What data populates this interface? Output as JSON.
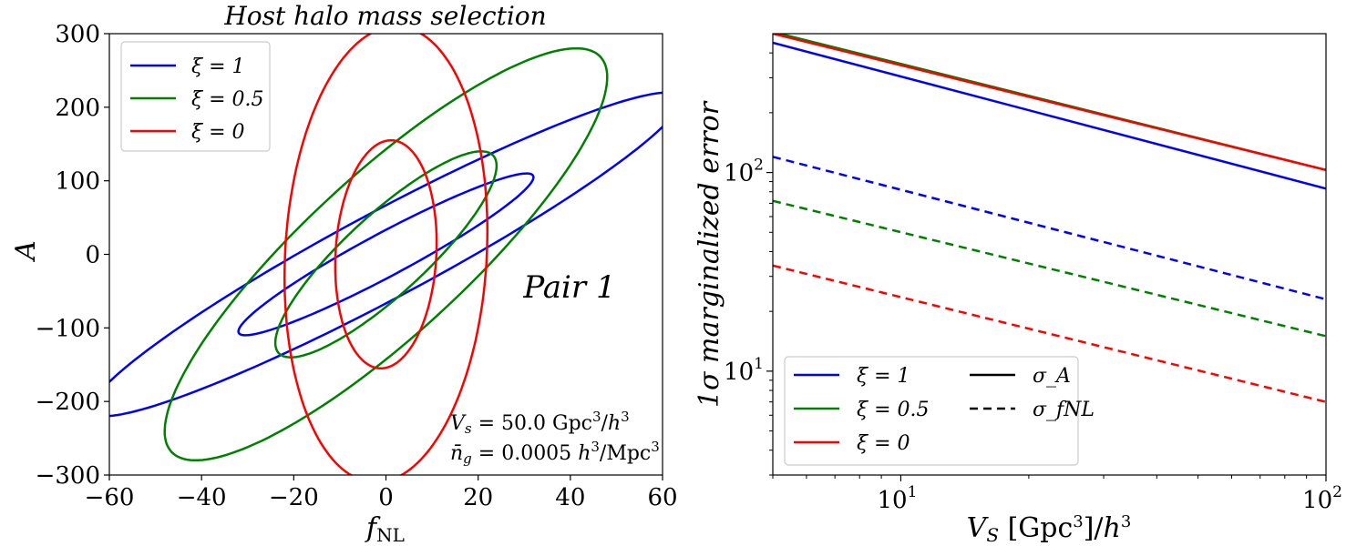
{
  "chart_data": [
    {
      "type": "contour",
      "title": "Host halo mass selection",
      "xlabel": "f_NL",
      "ylabel": "A",
      "xlim": [
        -60,
        60
      ],
      "ylim": [
        -300,
        300
      ],
      "xticks": [
        "−60",
        "−40",
        "−20",
        "0",
        "20",
        "40",
        "60"
      ],
      "yticks": [
        "300",
        "200",
        "100",
        "0",
        "−100",
        "−200",
        "−300"
      ],
      "annotation": "Pair 1",
      "notes": [
        "V_s = 50.0 Gpc³/h³",
        "n̄_g = 0.0005 h³/Mpc³"
      ],
      "legend": [
        "ξ = 1",
        "ξ = 0.5",
        "ξ = 0"
      ],
      "legend_position": "top-left",
      "series": [
        {
          "name": "ξ = 1",
          "color": "#0000ff",
          "center": [
            0,
            0
          ],
          "sigma_x": 32,
          "sigma_y": 110,
          "rho": 0.953,
          "levels": [
            1,
            2
          ]
        },
        {
          "name": "ξ = 0.5",
          "color": "#008000",
          "center": [
            0,
            0
          ],
          "sigma_x": 24,
          "sigma_y": 140,
          "rho": 0.86,
          "levels": [
            1,
            2
          ]
        },
        {
          "name": "ξ = 0",
          "color": "#ff0000",
          "center": [
            0,
            0
          ],
          "sigma_x": 11,
          "sigma_y": 155,
          "rho": 0.1,
          "levels": [
            1,
            2
          ]
        }
      ]
    },
    {
      "type": "line",
      "scale": "log-log",
      "xlabel": "V_S [Gpc³]/h³",
      "ylabel": "1σ marginalized error",
      "xlim": [
        5,
        100
      ],
      "ylim": [
        3,
        500
      ],
      "xticks": [
        {
          "value": 10,
          "label": "10",
          "exp": "1"
        },
        {
          "value": 100,
          "label": "10",
          "exp": "2"
        }
      ],
      "yticks": [
        {
          "value": 10,
          "label": "10",
          "exp": "1"
        },
        {
          "value": 100,
          "label": "10",
          "exp": "2"
        }
      ],
      "legend": {
        "colors": [
          "ξ = 1",
          "ξ = 0.5",
          "ξ = 0"
        ],
        "styles": [
          "σ_A",
          "σ_fNL"
        ],
        "position": "lower-left"
      },
      "series": [
        {
          "name": "σ_A, ξ = 1",
          "color": "#0000ff",
          "style": "solid",
          "x": [
            5,
            100
          ],
          "y": [
            450,
            83
          ]
        },
        {
          "name": "σ_A, ξ = 0.5",
          "color": "#008000",
          "style": "solid",
          "x": [
            5,
            100
          ],
          "y": [
            510,
            103
          ]
        },
        {
          "name": "σ_A, ξ = 0",
          "color": "#ff0000",
          "style": "solid",
          "x": [
            5,
            100
          ],
          "y": [
            500,
            103
          ]
        },
        {
          "name": "σ_fNL, ξ = 1",
          "color": "#0000ff",
          "style": "dashed",
          "x": [
            5,
            100
          ],
          "y": [
            120,
            23
          ]
        },
        {
          "name": "σ_fNL, ξ = 0.5",
          "color": "#008000",
          "style": "dashed",
          "x": [
            5,
            100
          ],
          "y": [
            72,
            15
          ]
        },
        {
          "name": "σ_fNL, ξ = 0",
          "color": "#ff0000",
          "style": "dashed",
          "x": [
            5,
            100
          ],
          "y": [
            34,
            7
          ]
        }
      ]
    }
  ]
}
